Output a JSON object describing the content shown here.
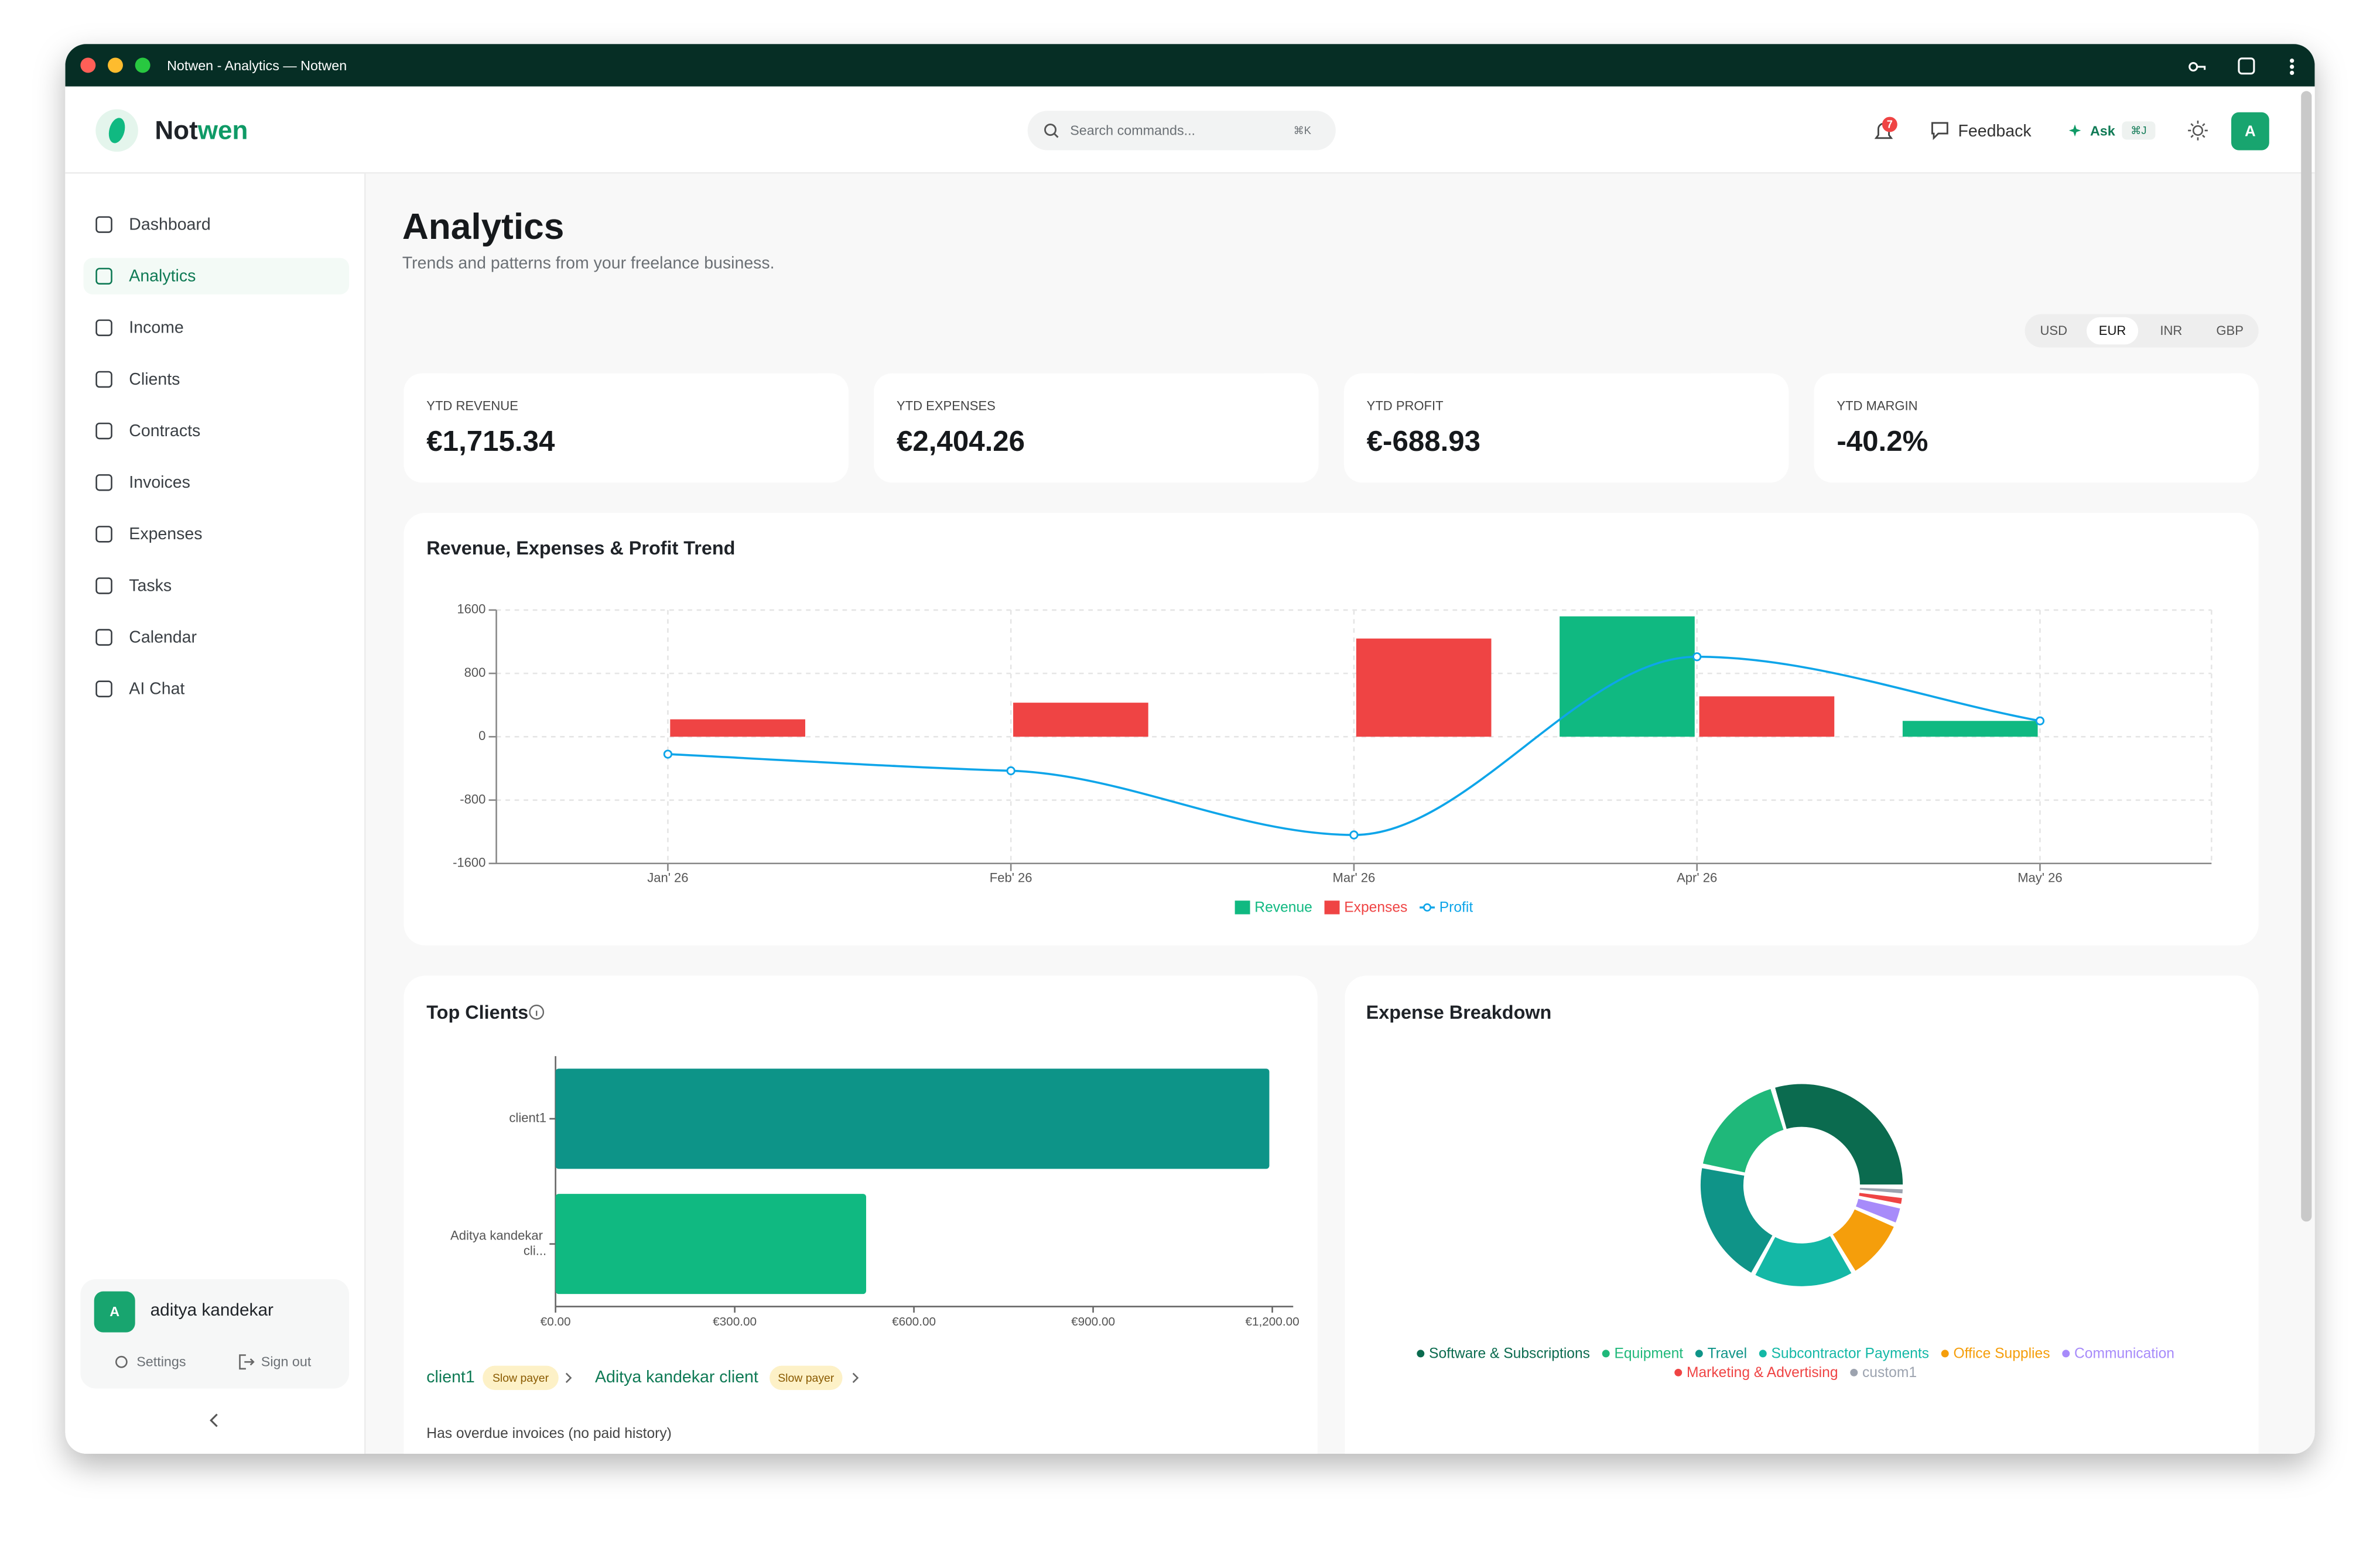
{
  "window_title": "Notwen - Analytics — Notwen",
  "brand": [
    "Not",
    "wen"
  ],
  "search": {
    "placeholder": "Search commands...",
    "shortcut": "⌘K"
  },
  "header": {
    "notifications": "7",
    "feedback": "Feedback",
    "ask": "Ask",
    "ask_shortcut": "⌘J",
    "avatar": "A"
  },
  "nav": [
    {
      "label": "Dashboard"
    },
    {
      "label": "Analytics",
      "active": true
    },
    {
      "label": "Income"
    },
    {
      "label": "Clients"
    },
    {
      "label": "Contracts"
    },
    {
      "label": "Invoices"
    },
    {
      "label": "Expenses"
    },
    {
      "label": "Tasks"
    },
    {
      "label": "Calendar"
    },
    {
      "label": "AI Chat"
    }
  ],
  "user": {
    "avatar": "A",
    "name": "aditya kandekar",
    "settings": "Settings",
    "sign_out": "Sign out"
  },
  "page": {
    "title": "Analytics",
    "subtitle": "Trends and patterns from your freelance business."
  },
  "currencies": [
    {
      "label": "USD"
    },
    {
      "label": "EUR",
      "selected": true
    },
    {
      "label": "INR"
    },
    {
      "label": "GBP"
    }
  ],
  "kpis": [
    {
      "label": "YTD REVENUE",
      "value": "€1,715.34"
    },
    {
      "label": "YTD EXPENSES",
      "value": "€2,404.26"
    },
    {
      "label": "YTD PROFIT",
      "value": "€-688.93"
    },
    {
      "label": "YTD MARGIN",
      "value": "-40.2%"
    }
  ],
  "top_clients_list": [
    {
      "name": "client1",
      "tag": "Slow payer"
    },
    {
      "name": "Aditya kandekar client",
      "tag": "Slow payer"
    }
  ],
  "top_clients_note": "Has overdue invoices (no paid history)",
  "chart_data": [
    {
      "type": "bar",
      "title": "Revenue, Expenses & Profit Trend",
      "categories": [
        "Jan' 26",
        "Feb' 26",
        "Mar' 26",
        "Apr' 26",
        "May' 26"
      ],
      "series": [
        {
          "name": "Revenue",
          "color": "#10b981",
          "values": [
            0,
            0,
            0,
            1520,
            200
          ]
        },
        {
          "name": "Expenses",
          "color": "#ef4444",
          "values": [
            220,
            430,
            1240,
            510,
            0
          ]
        },
        {
          "name": "Profit",
          "color": "#0ea5e9",
          "type": "line",
          "values": [
            -220,
            -430,
            -1240,
            1010,
            200
          ]
        }
      ],
      "ylim": [
        -1600,
        1600
      ],
      "yticks": [
        1600,
        800,
        0,
        -800,
        -1600
      ],
      "grid": true,
      "legend": "bottom"
    },
    {
      "type": "hbar",
      "title": "Top Clients",
      "categories": [
        "client1",
        "Aditya kandekar cli..."
      ],
      "values": [
        1195,
        520
      ],
      "colors": [
        "#0d9488",
        "#10b981"
      ],
      "xlim": [
        0,
        1235
      ],
      "xticks": [
        {
          "value": 0,
          "label": "€0.00"
        },
        {
          "value": 300,
          "label": "€300.00"
        },
        {
          "value": 600,
          "label": "€600.00"
        },
        {
          "value": 900,
          "label": "€900.00"
        },
        {
          "value": 1200,
          "label": "€1,200.00"
        }
      ]
    },
    {
      "type": "donut",
      "title": "Expense Breakdown",
      "categories": [
        "Software & Subscriptions",
        "Equipment",
        "Travel",
        "Subcontractor Payments",
        "Office Supplies",
        "Communication",
        "Marketing & Advertising",
        "custom1"
      ],
      "values": [
        738,
        422,
        492,
        401,
        239,
        63,
        28,
        21
      ],
      "colors": [
        "#0b6b4f",
        "#1fb87a",
        "#0f9488",
        "#14b8a6",
        "#f59e0b",
        "#a78bfa",
        "#ef4444",
        "#9ca3af"
      ],
      "legend": "bottom"
    }
  ]
}
